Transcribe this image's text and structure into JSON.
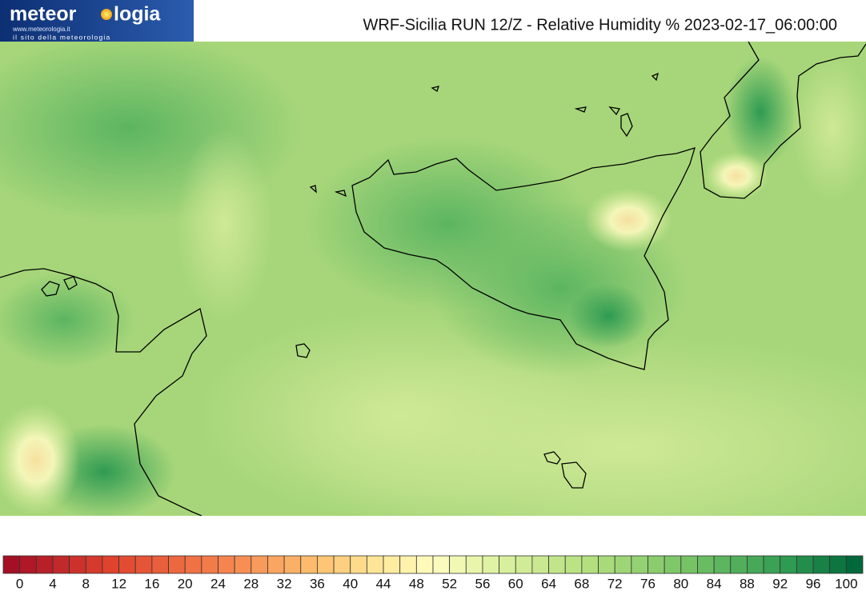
{
  "header": {
    "logo": {
      "name_left": "meteor",
      "name_right": "logia",
      "url": "www.meteorologia.it",
      "tagline": "il sito della meteorologia"
    },
    "title": "WRF-Sicilia RUN 12/Z - Relative Humidity % 2023-02-17_06:00:00"
  },
  "colorbar": {
    "labels": [
      0,
      4,
      8,
      12,
      16,
      20,
      24,
      28,
      32,
      36,
      40,
      44,
      48,
      52,
      56,
      60,
      64,
      68,
      72,
      76,
      80,
      84,
      88,
      92,
      96,
      100
    ]
  }
}
